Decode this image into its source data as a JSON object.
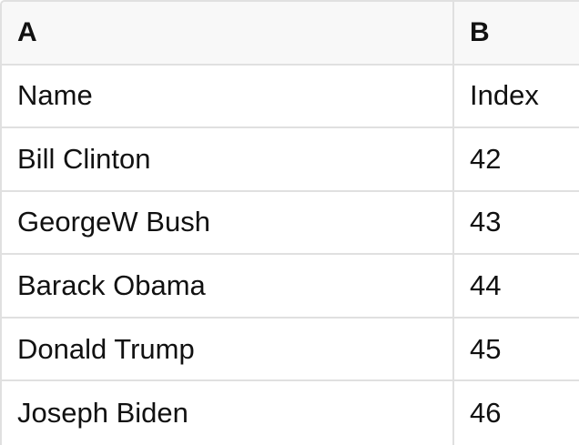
{
  "table": {
    "column_headers": [
      "A",
      "B"
    ],
    "rows": [
      [
        "Name",
        "Index"
      ],
      [
        "Bill Clinton",
        "42"
      ],
      [
        "GeorgeW Bush",
        "43"
      ],
      [
        "Barack Obama",
        "44"
      ],
      [
        "Donald Trump",
        "45"
      ],
      [
        "Joseph Biden",
        "46"
      ]
    ]
  },
  "colors": {
    "header_bg": "#f8f8f8",
    "grid_border": "#e0e0e0",
    "text": "#111111",
    "body_bg": "#ffffff"
  }
}
